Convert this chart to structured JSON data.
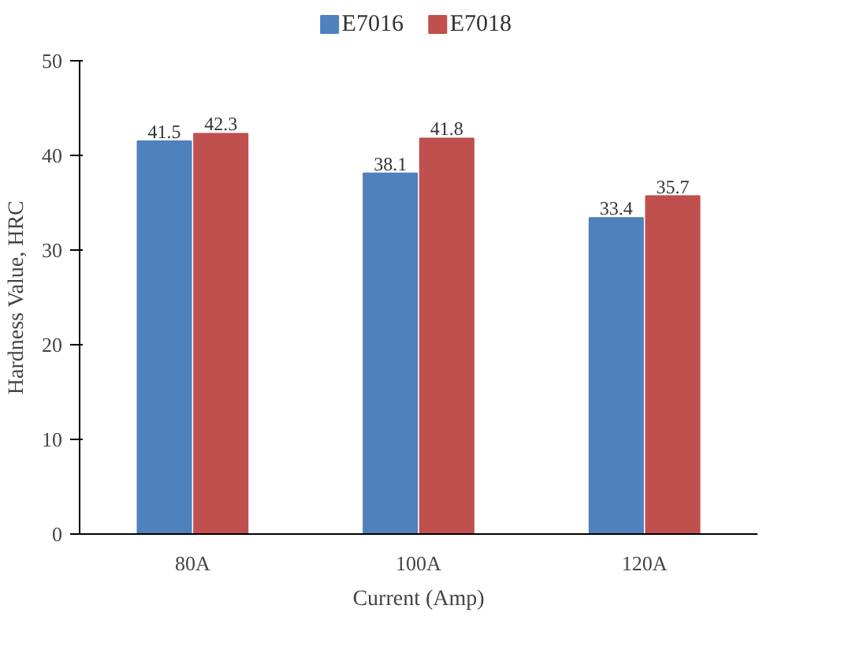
{
  "chart_data": {
    "type": "bar",
    "xlabel": "Current (Amp)",
    "ylabel": "Hardness Value, HRC",
    "categories": [
      "80A",
      "100A",
      "120A"
    ],
    "series": [
      {
        "name": "E7016",
        "color": "#4f81bd",
        "values": [
          41.5,
          38.1,
          33.4
        ]
      },
      {
        "name": "E7018",
        "color": "#c0504d",
        "values": [
          42.3,
          41.8,
          35.7
        ]
      }
    ],
    "ylim": [
      0,
      50
    ],
    "yticks": [
      0,
      10,
      20,
      30,
      40,
      50
    ],
    "data_labels": true,
    "legend": "top",
    "grid": false
  }
}
